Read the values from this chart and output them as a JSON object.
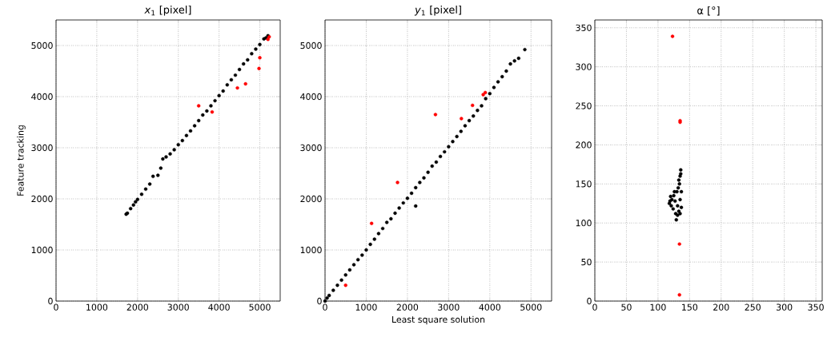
{
  "chart_data": [
    {
      "type": "scatter",
      "title": "*x*$_{1}$ [pixel]",
      "ylabel": "Feature tracking",
      "xlim": [
        0,
        5500
      ],
      "ylim": [
        0,
        5500
      ],
      "xticks": [
        0,
        1000,
        2000,
        3000,
        4000,
        5000
      ],
      "yticks": [
        0,
        1000,
        2000,
        3000,
        4000,
        5000
      ],
      "grid": true,
      "series": [
        {
          "color": "#000000",
          "x": [
            1720,
            1750,
            1830,
            1900,
            1950,
            2000,
            2100,
            2200,
            2300,
            2380,
            2500,
            2570,
            2620,
            2700,
            2800,
            2900,
            3000,
            3100,
            3200,
            3300,
            3400,
            3500,
            3600,
            3700,
            3800,
            3900,
            4000,
            4100,
            4200,
            4300,
            4400,
            4500,
            4600,
            4700,
            4800,
            4900,
            5000,
            5100,
            5150,
            5200
          ],
          "values": [
            1700,
            1720,
            1810,
            1880,
            1940,
            1990,
            2090,
            2190,
            2290,
            2440,
            2460,
            2600,
            2780,
            2820,
            2880,
            2960,
            3060,
            3140,
            3240,
            3330,
            3430,
            3530,
            3640,
            3720,
            3820,
            3920,
            4020,
            4110,
            4230,
            4330,
            4420,
            4530,
            4640,
            4720,
            4840,
            4930,
            5020,
            5130,
            5150,
            5190
          ]
        },
        {
          "color": "#ff0000",
          "x": [
            3500,
            3830,
            4450,
            4650,
            4980,
            5000,
            5200,
            5230
          ],
          "values": [
            3820,
            3700,
            4170,
            4250,
            4550,
            4760,
            5120,
            5170
          ]
        }
      ]
    },
    {
      "type": "scatter",
      "title": "*y*$_{1}$ [pixel]",
      "xlabel": "Least square solution",
      "xlim": [
        0,
        5500
      ],
      "ylim": [
        0,
        5500
      ],
      "xticks": [
        0,
        1000,
        2000,
        3000,
        4000,
        5000
      ],
      "yticks": [
        0,
        1000,
        2000,
        3000,
        4000,
        5000
      ],
      "grid": true,
      "series": [
        {
          "color": "#000000",
          "x": [
            0,
            50,
            100,
            200,
            300,
            400,
            500,
            600,
            700,
            800,
            900,
            1000,
            1100,
            1200,
            1300,
            1400,
            1500,
            1600,
            1700,
            1800,
            1900,
            2000,
            2100,
            2200,
            2200,
            2300,
            2400,
            2500,
            2600,
            2700,
            2800,
            2900,
            3000,
            3100,
            3200,
            3300,
            3400,
            3500,
            3600,
            3700,
            3800,
            3900,
            4000,
            4100,
            4200,
            4300,
            4400,
            4500,
            4600,
            4700,
            4850
          ],
          "values": [
            0,
            60,
            110,
            210,
            310,
            410,
            510,
            610,
            710,
            810,
            900,
            1000,
            1110,
            1210,
            1320,
            1420,
            1540,
            1610,
            1720,
            1820,
            1920,
            2010,
            2110,
            2220,
            1860,
            2320,
            2410,
            2520,
            2640,
            2720,
            2830,
            2920,
            3020,
            3120,
            3220,
            3320,
            3430,
            3530,
            3620,
            3730,
            3820,
            3960,
            4060,
            4180,
            4290,
            4390,
            4500,
            4640,
            4700,
            4750,
            4920
          ]
        },
        {
          "color": "#ff0000",
          "x": [
            500,
            1130,
            1760,
            2680,
            3310,
            3580,
            3840,
            3890
          ],
          "values": [
            310,
            1520,
            2320,
            3650,
            3570,
            3830,
            4040,
            4080
          ]
        }
      ]
    },
    {
      "type": "scatter",
      "title": "α [°]",
      "xlim": [
        0,
        360
      ],
      "ylim": [
        0,
        360
      ],
      "xticks": [
        0,
        50,
        100,
        150,
        200,
        250,
        300,
        350
      ],
      "yticks": [
        0,
        50,
        100,
        150,
        200,
        250,
        300,
        350
      ],
      "grid": true,
      "series": [
        {
          "color": "#000000",
          "x": [
            118,
            120,
            122,
            124,
            125,
            127,
            128,
            129,
            130,
            131,
            132,
            133,
            134,
            135,
            135,
            136,
            136,
            137,
            135,
            133,
            126,
            121,
            119,
            131,
            137
          ],
          "values": [
            125,
            134,
            130,
            118,
            135,
            128,
            112,
            104,
            140,
            122,
            145,
            115,
            150,
            160,
            130,
            163,
            168,
            120,
            112,
            155,
            140,
            122,
            128,
            110,
            140
          ]
        },
        {
          "color": "#ff0000",
          "x": [
            123,
            135,
            135,
            134,
            134
          ],
          "values": [
            339,
            229,
            231,
            73,
            8
          ]
        }
      ]
    }
  ]
}
